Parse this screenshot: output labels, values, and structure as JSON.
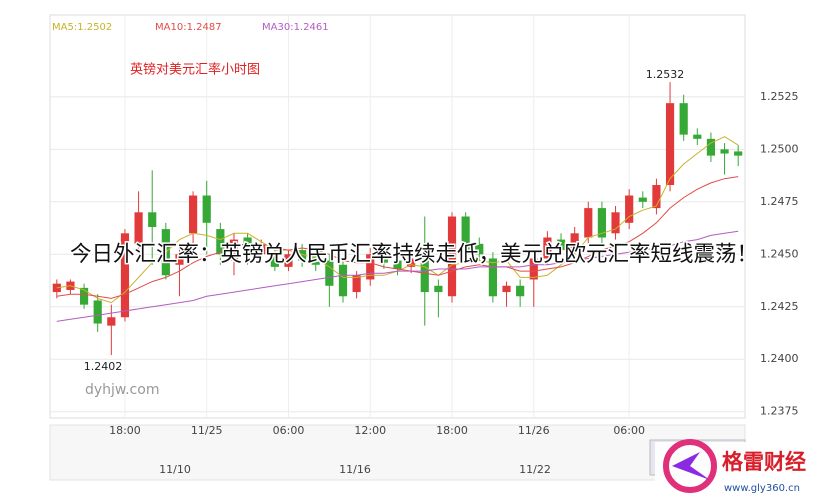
{
  "chart_data": {
    "type": "candlestick",
    "title": "英镑对美元汇率小时图",
    "headline": "今日外汇汇率：英镑兑人民币汇率持续走低，美元兑欧元汇率短线震荡！",
    "watermark": "dyhjw.com",
    "annotations": [
      "1.2532",
      "1.2402"
    ],
    "brand": {
      "name": "格雷财经",
      "url": "www.gly360.cn"
    },
    "navigator_labels": [
      "11/10",
      "11/16",
      "11/22"
    ],
    "up_color": "#e23a3a",
    "down_color": "#35a835",
    "categories": [
      null,
      null,
      null,
      null,
      null,
      "18:00",
      null,
      null,
      null,
      null,
      null,
      "11/25",
      null,
      null,
      null,
      null,
      null,
      "06:00",
      null,
      null,
      null,
      null,
      null,
      "12:00",
      null,
      null,
      null,
      null,
      null,
      "18:00",
      null,
      null,
      null,
      null,
      null,
      "11/26",
      null,
      null,
      null,
      null,
      null,
      null,
      "06:00",
      null,
      null,
      null,
      null,
      null,
      null,
      null,
      null
    ],
    "open": [
      1.2432,
      1.2433,
      1.2434,
      1.2428,
      1.2416,
      1.242,
      1.2455,
      1.247,
      1.2462,
      1.2445,
      1.246,
      1.2478,
      1.2462,
      1.2447,
      1.2458,
      1.245,
      1.245,
      1.2444,
      1.2452,
      1.245,
      1.2447,
      1.2445,
      1.2432,
      1.2438,
      1.245,
      1.2447,
      1.2444,
      1.245,
      1.2435,
      1.243,
      1.2468,
      1.2455,
      1.2448,
      1.2432,
      1.2435,
      1.2438,
      1.2448,
      1.2457,
      1.2452,
      1.2458,
      1.2472,
      1.246,
      1.2465,
      1.2477,
      1.2472,
      1.2483,
      1.2522,
      1.2507,
      1.2505,
      1.25,
      1.2499
    ],
    "high": [
      1.2438,
      1.2438,
      1.2436,
      1.2431,
      1.2426,
      1.2462,
      1.248,
      1.249,
      1.2465,
      1.2455,
      1.248,
      1.2485,
      1.2465,
      1.246,
      1.246,
      1.2457,
      1.2452,
      1.2452,
      1.2455,
      1.2452,
      1.245,
      1.2448,
      1.2442,
      1.2453,
      1.2453,
      1.245,
      1.245,
      1.2468,
      1.2438,
      1.247,
      1.247,
      1.2458,
      1.2451,
      1.2437,
      1.2438,
      1.245,
      1.2461,
      1.246,
      1.2463,
      1.2475,
      1.2475,
      1.2473,
      1.2481,
      1.248,
      1.2486,
      1.2532,
      1.2526,
      1.251,
      1.2508,
      1.2503,
      1.2502
    ],
    "low": [
      1.2429,
      1.2431,
      1.2424,
      1.2413,
      1.2402,
      1.2418,
      1.245,
      1.2445,
      1.2438,
      1.243,
      1.2455,
      1.245,
      1.2445,
      1.244,
      1.2445,
      1.2446,
      1.2442,
      1.2442,
      1.2444,
      1.2442,
      1.2425,
      1.2427,
      1.2429,
      1.2435,
      1.2443,
      1.244,
      1.2441,
      1.2416,
      1.242,
      1.2427,
      1.2449,
      1.2447,
      1.2427,
      1.2425,
      1.2425,
      1.2425,
      1.2445,
      1.2449,
      1.2449,
      1.2455,
      1.2455,
      1.2457,
      1.2462,
      1.2472,
      1.2469,
      1.248,
      1.2504,
      1.2502,
      1.2494,
      1.2488,
      1.2492
    ],
    "close": [
      1.2436,
      1.2437,
      1.2426,
      1.2417,
      1.242,
      1.246,
      1.247,
      1.2463,
      1.244,
      1.245,
      1.2478,
      1.2465,
      1.245,
      1.2457,
      1.2452,
      1.2455,
      1.2444,
      1.245,
      1.2447,
      1.2445,
      1.2435,
      1.243,
      1.244,
      1.245,
      1.2446,
      1.2443,
      1.2448,
      1.2432,
      1.2432,
      1.2468,
      1.2452,
      1.245,
      1.243,
      1.2435,
      1.243,
      1.2448,
      1.2458,
      1.2452,
      1.246,
      1.2472,
      1.2458,
      1.247,
      1.2478,
      1.2475,
      1.2483,
      1.2522,
      1.2507,
      1.2505,
      1.2497,
      1.2498,
      1.2497
    ],
    "ma_series": [
      {
        "name": "MA5:1.2502",
        "color": "#c9b22a",
        "values": [
          1.2434,
          1.2435,
          1.2433,
          1.2429,
          1.2427,
          1.2432,
          1.2439,
          1.2446,
          1.2451,
          1.2457,
          1.246,
          1.2459,
          1.2457,
          1.246,
          1.246,
          1.2456,
          1.2452,
          1.2452,
          1.245,
          1.2448,
          1.2444,
          1.2439,
          1.2439,
          1.244,
          1.244,
          1.2442,
          1.2445,
          1.2444,
          1.244,
          1.2445,
          1.2446,
          1.2447,
          1.2446,
          1.2447,
          1.2439,
          1.2439,
          1.244,
          1.2445,
          1.245,
          1.2458,
          1.246,
          1.2462,
          1.2468,
          1.2471,
          1.2473,
          1.2486,
          1.2493,
          1.2498,
          1.2503,
          1.2506,
          1.2502
        ]
      },
      {
        "name": "MA10:1.2487",
        "color": "#e24b4b",
        "values": [
          1.243,
          1.2431,
          1.2431,
          1.243,
          1.2429,
          1.2431,
          1.2434,
          1.2437,
          1.2439,
          1.2442,
          1.2446,
          1.2449,
          1.2451,
          1.2454,
          1.2455,
          1.2455,
          1.2453,
          1.2452,
          1.2453,
          1.2452,
          1.245,
          1.2447,
          1.2446,
          1.2446,
          1.2444,
          1.2443,
          1.2442,
          1.2441,
          1.244,
          1.2442,
          1.2444,
          1.2445,
          1.2444,
          1.2444,
          1.2442,
          1.2442,
          1.2443,
          1.2444,
          1.2446,
          1.2449,
          1.2452,
          1.2454,
          1.2456,
          1.246,
          1.2465,
          1.2472,
          1.2477,
          1.2481,
          1.2484,
          1.2486,
          1.2487
        ]
      },
      {
        "name": "MA30:1.2461",
        "color": "#b45cc4",
        "values": [
          1.2418,
          1.2419,
          1.242,
          1.2421,
          1.2422,
          1.2423,
          1.2424,
          1.2425,
          1.2426,
          1.2427,
          1.2428,
          1.243,
          1.2431,
          1.2432,
          1.2433,
          1.2434,
          1.2435,
          1.2436,
          1.2437,
          1.2438,
          1.2439,
          1.244,
          1.244,
          1.2441,
          1.2441,
          1.2442,
          1.2442,
          1.2442,
          1.2443,
          1.2443,
          1.2443,
          1.2444,
          1.2444,
          1.2444,
          1.2444,
          1.2445,
          1.2445,
          1.2446,
          1.2447,
          1.2448,
          1.2449,
          1.245,
          1.2451,
          1.2452,
          1.2453,
          1.2454,
          1.2456,
          1.2457,
          1.2459,
          1.246,
          1.2461
        ]
      }
    ],
    "ylim": [
      1.2372,
      1.2564
    ],
    "yticks": [
      1.2375,
      {
        "value": 1.24,
        "label": "1.2400"
      },
      1.2425,
      {
        "value": 1.245,
        "label": "1.2450"
      },
      1.2475,
      {
        "value": 1.25,
        "label": "1.2500"
      },
      1.2525
    ],
    "grid": true
  }
}
